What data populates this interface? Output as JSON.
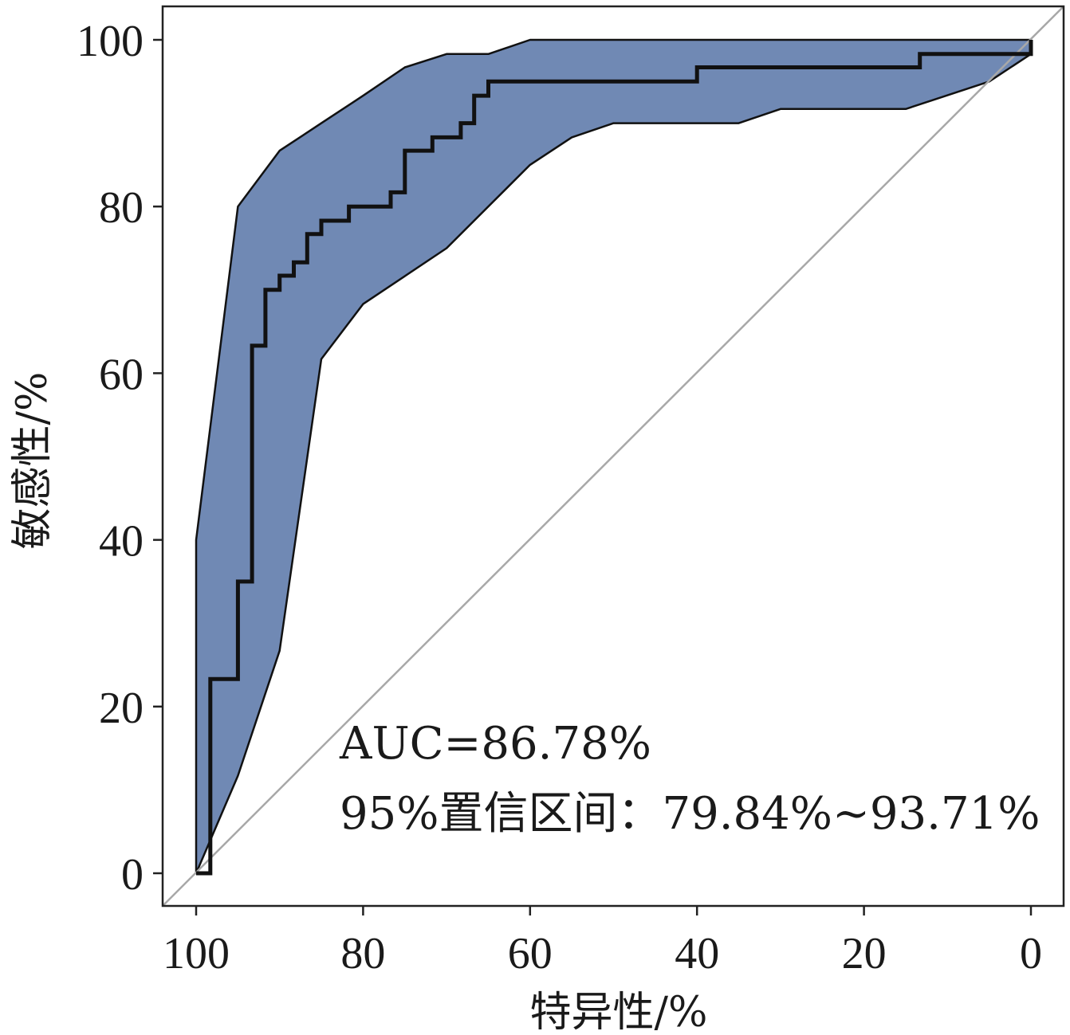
{
  "chart_data": {
    "type": "line",
    "xlabel": "特异性/%",
    "ylabel": "敏感性/%",
    "x_reversed": true,
    "xlim": [
      100,
      0
    ],
    "ylim": [
      0,
      100
    ],
    "x_ticks": [
      "100",
      "80",
      "60",
      "40",
      "20",
      "0"
    ],
    "y_ticks": [
      "0",
      "20",
      "40",
      "60",
      "80",
      "100"
    ],
    "x_tick_values": [
      100,
      80,
      60,
      40,
      20,
      0
    ],
    "y_tick_values": [
      0,
      20,
      40,
      60,
      80,
      100
    ],
    "grid": false,
    "colors": {
      "band": "#7089b4",
      "curve": "#111111",
      "diagonal": "#a8a8a8"
    },
    "annotations": [
      "AUC=86.78%",
      "95%置信区间：79.84%~93.71%"
    ],
    "roc_curve": {
      "specificity": [
        100,
        98.3,
        98.3,
        95,
        95,
        93.3,
        93.3,
        91.7,
        91.7,
        90,
        90,
        88.3,
        88.3,
        86.7,
        86.7,
        85,
        85,
        81.7,
        81.7,
        76.7,
        76.7,
        75,
        75,
        71.7,
        71.7,
        68.3,
        68.3,
        66.7,
        66.7,
        65,
        65,
        40,
        40,
        13.3,
        13.3,
        0,
        0
      ],
      "sensitivity": [
        0,
        0,
        23.3,
        23.3,
        35,
        35,
        63.3,
        63.3,
        70,
        70,
        71.7,
        71.7,
        73.3,
        73.3,
        76.7,
        76.7,
        78.3,
        78.3,
        80,
        80,
        81.7,
        81.7,
        86.7,
        86.7,
        88.3,
        88.3,
        90,
        90,
        93.3,
        93.3,
        95,
        95,
        96.7,
        96.7,
        98.3,
        98.3,
        100
      ]
    },
    "ci_band": {
      "upper": {
        "specificity": [
          100,
          95,
          90,
          85,
          80,
          75,
          70,
          65,
          60,
          50,
          40,
          30,
          20,
          10,
          0
        ],
        "sensitivity": [
          40,
          80,
          86.7,
          90,
          93.3,
          96.7,
          98.3,
          98.3,
          100,
          100,
          100,
          100,
          100,
          100,
          100
        ]
      },
      "lower": {
        "specificity": [
          0,
          5,
          15,
          30,
          35,
          50,
          55,
          60,
          70,
          80,
          85,
          90,
          95,
          100
        ],
        "sensitivity": [
          98.3,
          95,
          91.7,
          91.7,
          90,
          90,
          88.3,
          85,
          75,
          68.3,
          61.7,
          26.7,
          11.7,
          0
        ]
      }
    }
  }
}
